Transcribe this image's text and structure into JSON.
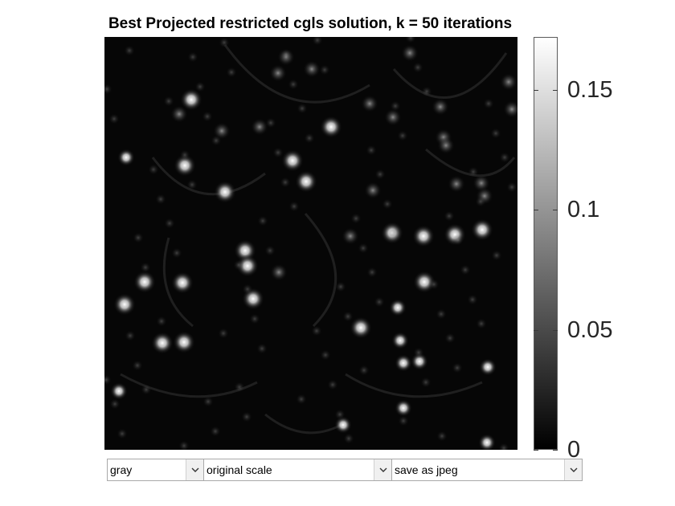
{
  "figure": {
    "title": "Best Projected restricted cgls solution, k = 50 iterations",
    "colormap": "gray",
    "background_color": "#060606"
  },
  "colorbar": {
    "tick_labels": [
      "0.15",
      "0.1",
      "0.05",
      "0"
    ],
    "tick_values": [
      0.15,
      0.1,
      0.05,
      0
    ],
    "min": 0,
    "max": 0.172
  },
  "controls": {
    "colormap_select": {
      "value": "gray",
      "icon": "chevron-down-icon"
    },
    "scale_select": {
      "value": "original scale",
      "icon": "chevron-down-icon"
    },
    "save_select": {
      "value": "save as jpeg",
      "icon": "chevron-down-icon"
    }
  }
}
